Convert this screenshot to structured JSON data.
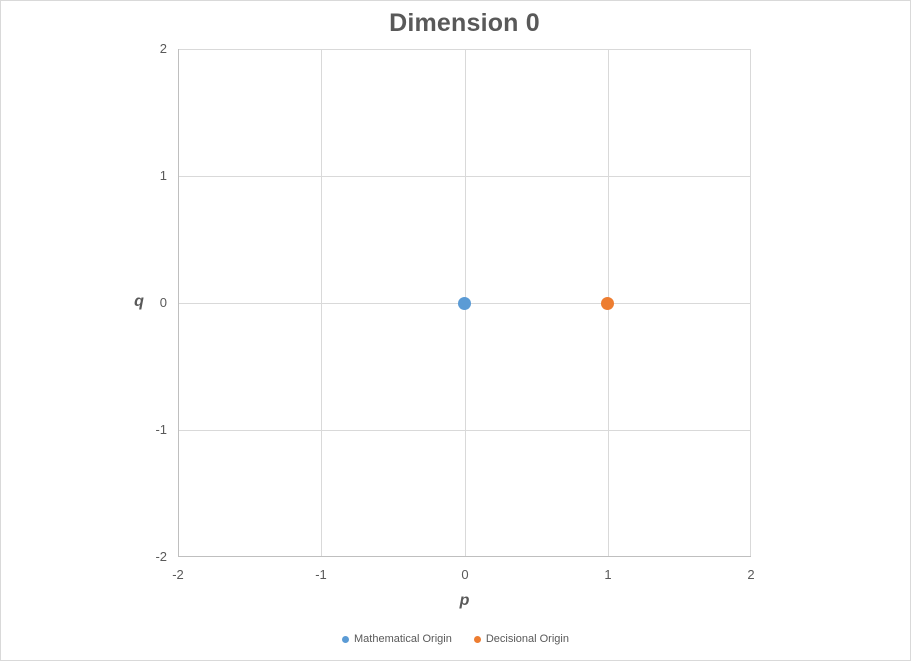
{
  "chart_data": {
    "type": "scatter",
    "title": "Dimension 0",
    "xlabel": "p",
    "ylabel": "q",
    "xlim": [
      -2,
      2
    ],
    "ylim": [
      -2,
      2
    ],
    "xticks": [
      -2,
      -1,
      0,
      1,
      2
    ],
    "yticks": [
      -2,
      -1,
      0,
      1,
      2
    ],
    "grid": true,
    "legend_position": "bottom",
    "series": [
      {
        "name": "Mathematical Origin",
        "color": "#5B9BD5",
        "points": [
          {
            "x": 0,
            "y": 0
          }
        ]
      },
      {
        "name": "Decisional Origin",
        "color": "#ED7D31",
        "points": [
          {
            "x": 1,
            "y": 0
          }
        ]
      }
    ],
    "colors": {
      "gridline": "#D9D9D9",
      "axis_line": "#BFBFBF",
      "text": "#595959",
      "title": "#595959",
      "background": "#FFFFFF",
      "canvas_border": "#D9D9D9"
    }
  }
}
